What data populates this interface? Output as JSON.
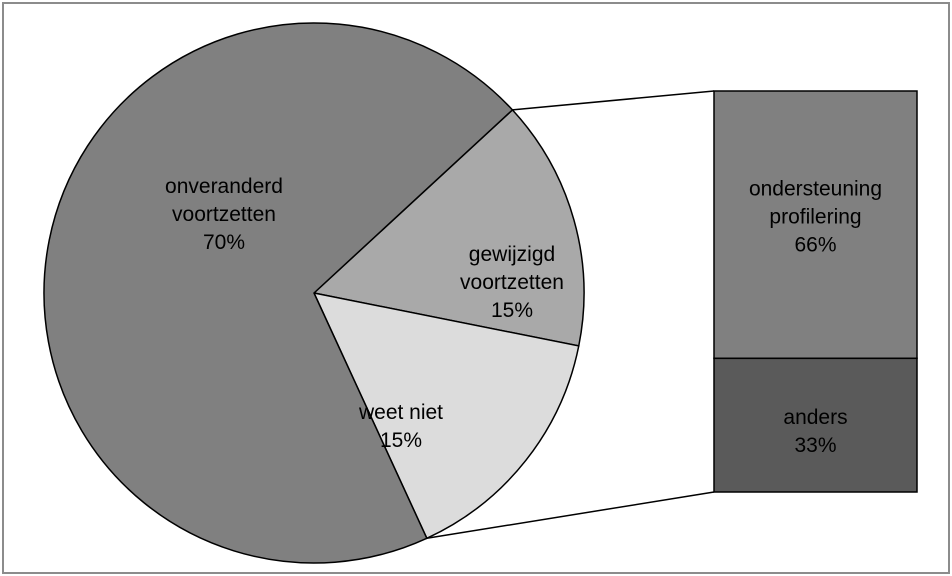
{
  "chart_data": {
    "type": "pie",
    "variant": "bar-of-pie",
    "pie": {
      "slices": [
        {
          "key": "onveranderd",
          "lines": [
            "onveranderd",
            "voortzetten",
            "70%"
          ],
          "value": 70,
          "color": "#808080"
        },
        {
          "key": "gewijzigd",
          "lines": [
            "gewijzigd",
            "voortzetten",
            "15%"
          ],
          "value": 15,
          "color": "#a9a9a9"
        },
        {
          "key": "weet-niet",
          "lines": [
            "weet niet",
            "15%"
          ],
          "value": 15,
          "color": "#dcdcdc"
        }
      ]
    },
    "bar": {
      "segments": [
        {
          "key": "ondersteuning",
          "lines": [
            "ondersteuning",
            "profilering",
            "66%"
          ],
          "value": 66,
          "color": "#808080"
        },
        {
          "key": "anders",
          "lines": [
            "anders",
            "33%"
          ],
          "value": 33,
          "color": "#5a5a5a"
        }
      ]
    },
    "title": "",
    "legend": "none",
    "colors": {
      "border": "#8c8c8c",
      "stroke": "#000000",
      "background": "#ffffff"
    }
  }
}
